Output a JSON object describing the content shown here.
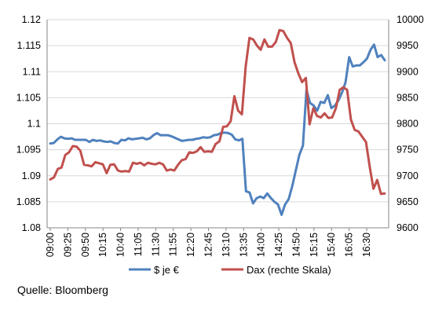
{
  "chart_data": {
    "type": "line",
    "title": "",
    "xlabel": "",
    "ylabel": "",
    "source": "Quelle: Bloomberg",
    "grid": "horizontal",
    "legend_position": "bottom",
    "x_ticks": [
      "09:00",
      "09:25",
      "09:50",
      "10:15",
      "10:40",
      "11:05",
      "11:30",
      "11:55",
      "12:20",
      "12:45",
      "13:10",
      "13:35",
      "14:00",
      "14:25",
      "14:50",
      "15:15",
      "15:40",
      "16:05",
      "16:30"
    ],
    "y_left": {
      "lim": [
        1.08,
        1.12
      ],
      "ticks": [
        "1.08",
        "1.085",
        "1.09",
        "1.095",
        "1.1",
        "1.105",
        "1.11",
        "1.115",
        "1.12"
      ]
    },
    "y_right": {
      "lim": [
        9600,
        10000
      ],
      "ticks": [
        "9600",
        "9650",
        "9700",
        "9750",
        "9800",
        "9850",
        "9900",
        "9950",
        "10000"
      ]
    },
    "series": [
      {
        "name": "$ je €",
        "axis": "left",
        "color": "#4f81bd",
        "values": [
          1.0962,
          1.0963,
          1.097,
          1.0975,
          1.0972,
          1.0971,
          1.0972,
          1.0969,
          1.0969,
          1.0969,
          1.0969,
          1.0965,
          1.0969,
          1.0967,
          1.0968,
          1.0966,
          1.0965,
          1.0966,
          1.0963,
          1.0962,
          1.0969,
          1.0968,
          1.0972,
          1.097,
          1.0971,
          1.0972,
          1.0973,
          1.097,
          1.0972,
          1.0978,
          1.0982,
          1.0978,
          1.0978,
          1.0978,
          1.0976,
          1.0973,
          1.097,
          1.0967,
          1.0968,
          1.0969,
          1.0969,
          1.0971,
          1.0972,
          1.0974,
          1.0973,
          1.0974,
          1.0978,
          1.0979,
          1.0982,
          1.0983,
          1.0982,
          1.0979,
          1.097,
          1.0968,
          1.0971,
          1.087,
          1.0868,
          1.0847,
          1.0857,
          1.086,
          1.0857,
          1.0866,
          1.0857,
          1.085,
          1.0845,
          1.0825,
          1.0845,
          1.0855,
          1.088,
          1.091,
          1.094,
          1.0958,
          1.1065,
          1.104,
          1.1035,
          1.1025,
          1.1042,
          1.104,
          1.1055,
          1.103,
          1.1035,
          1.1045,
          1.106,
          1.108,
          1.1128,
          1.111,
          1.1112,
          1.1112,
          1.1118,
          1.1125,
          1.1142,
          1.1152,
          1.1128,
          1.1132,
          1.1122
        ]
      },
      {
        "name": "Dax (rechte Skala)",
        "axis": "right",
        "color": "#c0504d",
        "values": [
          9693,
          9697,
          9713,
          9716,
          9740,
          9745,
          9757,
          9756,
          9748,
          9721,
          9720,
          9718,
          9726,
          9724,
          9722,
          9705,
          9721,
          9722,
          9710,
          9708,
          9709,
          9708,
          9725,
          9723,
          9725,
          9720,
          9725,
          9723,
          9722,
          9725,
          9722,
          9710,
          9712,
          9710,
          9721,
          9730,
          9732,
          9745,
          9744,
          9747,
          9755,
          9746,
          9747,
          9746,
          9761,
          9766,
          9794,
          9795,
          9805,
          9853,
          9825,
          9818,
          9910,
          9965,
          9962,
          9950,
          9942,
          9962,
          9948,
          9948,
          9957,
          9980,
          9978,
          9965,
          9955,
          9918,
          9897,
          9880,
          9888,
          9799,
          9830,
          9815,
          9812,
          9820,
          9811,
          9812,
          9830,
          9865,
          9870,
          9865,
          9808,
          9788,
          9785,
          9775,
          9765,
          9717,
          9675,
          9692,
          9665,
          9666
        ]
      }
    ]
  },
  "colors": {
    "grid": "#d9d9d9",
    "axis": "#868686",
    "text": "#000000"
  }
}
